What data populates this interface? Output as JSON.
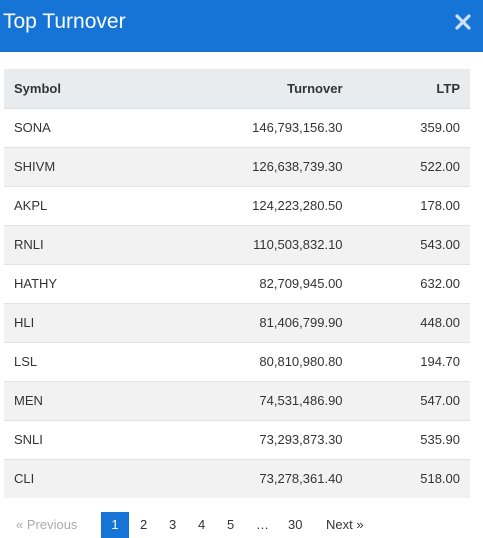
{
  "modal": {
    "title": "Top Turnover",
    "close_icon": "close-icon"
  },
  "table": {
    "headers": {
      "symbol": "Symbol",
      "turnover": "Turnover",
      "ltp": "LTP"
    },
    "rows": [
      {
        "symbol": "SONA",
        "turnover": "146,793,156.30",
        "ltp": "359.00"
      },
      {
        "symbol": "SHIVM",
        "turnover": "126,638,739.30",
        "ltp": "522.00"
      },
      {
        "symbol": "AKPL",
        "turnover": "124,223,280.50",
        "ltp": "178.00"
      },
      {
        "symbol": "RNLI",
        "turnover": "110,503,832.10",
        "ltp": "543.00"
      },
      {
        "symbol": "HATHY",
        "turnover": "82,709,945.00",
        "ltp": "632.00"
      },
      {
        "symbol": "HLI",
        "turnover": "81,406,799.90",
        "ltp": "448.00"
      },
      {
        "symbol": "LSL",
        "turnover": "80,810,980.80",
        "ltp": "194.70"
      },
      {
        "symbol": "MEN",
        "turnover": "74,531,486.90",
        "ltp": "547.00"
      },
      {
        "symbol": "SNLI",
        "turnover": "73,293,873.30",
        "ltp": "535.90"
      },
      {
        "symbol": "CLI",
        "turnover": "73,278,361.40",
        "ltp": "518.00"
      }
    ]
  },
  "pagination": {
    "previous": "« Previous",
    "pages": [
      "1",
      "2",
      "3",
      "4",
      "5"
    ],
    "ellipsis": "…",
    "last": "30",
    "next": "Next »",
    "current": "1"
  },
  "colors": {
    "header_bg": "#1574d6",
    "active_page_bg": "#1574d6",
    "table_head_bg": "#e9ecef",
    "stripe_bg": "#f2f2f2"
  }
}
